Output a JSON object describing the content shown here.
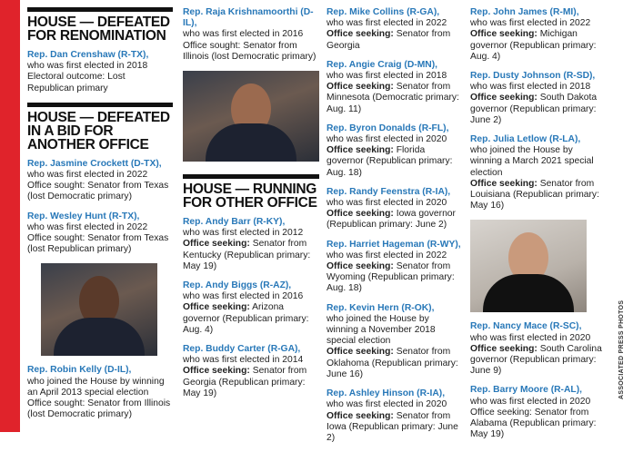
{
  "credit": "ASSOCIATED PRESS PHOTOS",
  "sections": [
    {
      "heading": "HOUSE — DEFEATED FOR RENOMINATION",
      "entries": [
        {
          "name": "Rep. Dan Crenshaw (R-TX),",
          "intro": "who was first elected in 2018",
          "detail": "Electoral outcome: Lost Republican primary"
        }
      ]
    },
    {
      "heading": "HOUSE — DEFEATED IN A BID FOR ANOTHER OFFICE",
      "entries": [
        {
          "name": "Rep. Jasmine Crockett (D-TX),",
          "intro": "who was first elected in 2022",
          "detail": "Office sought: Senator from Texas (lost Democratic primary)"
        },
        {
          "name": "Rep. Wesley Hunt (R-TX),",
          "intro": "who was first elected in 2022",
          "detail": "Office sought: Senator from Texas (lost Republican primary)"
        },
        {
          "name": "Rep. Robin Kelly (D-IL),",
          "intro": "who joined the House by winning an April 2013 special election",
          "detail": "Office sought: Senator from Illinois (lost Democratic primary)"
        },
        {
          "name": "Rep. Raja Krishnamoorthi (D-IL),",
          "intro": "who was first elected in 2016",
          "detail": "Office sought: Senator from Illinois (lost Democratic primary)"
        }
      ]
    },
    {
      "heading": "HOUSE — RUNNING FOR OTHER OFFICE",
      "entries": [
        {
          "name": "Rep. Andy Barr (R-KY),",
          "intro": "who was first elected in 2012",
          "label": "Office seeking:",
          "detail": "Senator from Kentucky (Republican primary: May 19)"
        },
        {
          "name": "Rep. Andy Biggs (R-AZ),",
          "intro": "who was first elected in 2016",
          "label": "Office seeking:",
          "detail": "Arizona governor (Republican primary: Aug. 4)"
        },
        {
          "name": "Rep. Buddy Carter (R-GA),",
          "intro": "who was first elected in 2014",
          "label": "Office seeking:",
          "detail": "Senator from Georgia (Republican primary: May 19)"
        },
        {
          "name": "Rep. Mike Collins (R-GA),",
          "intro": "who was first elected in 2022",
          "label": "Office seeking:",
          "detail": "Senator from Georgia"
        },
        {
          "name": "Rep. Angie Craig (D-MN),",
          "intro": "who was first elected in 2018",
          "label": "Office seeking:",
          "detail": "Senator from Minnesota (Democratic primary: Aug. 11)"
        },
        {
          "name": "Rep. Byron Donalds (R-FL),",
          "intro": "who was first elected in 2020",
          "label": "Office seeking:",
          "detail": "Florida governor (Republican primary: Aug. 18)"
        },
        {
          "name": "Rep. Randy Feenstra (R-IA),",
          "intro": "who was first elected in 2020",
          "label": "Office seeking:",
          "detail": "Iowa governor (Republican primary: June 2)"
        },
        {
          "name": "Rep. Harriet Hageman (R-WY),",
          "intro": "who was first elected in 2022",
          "label": "Office seeking:",
          "detail": "Senator from Wyoming (Republican primary: Aug. 18)"
        },
        {
          "name": "Rep. Kevin Hern (R-OK),",
          "intro": "who joined the House by winning a November 2018 special election",
          "label": "Office seeking:",
          "detail": "Senator from Oklahoma (Republican primary: June 16)"
        },
        {
          "name": "Rep. Ashley Hinson (R-IA),",
          "intro": "who was first elected in 2020",
          "label": "Office seeking:",
          "detail": "Senator from Iowa (Republican primary: June 2)"
        },
        {
          "name": "Rep. John James (R-MI),",
          "intro": "who was first elected in 2022",
          "label": "Office seeking:",
          "detail": "Michigan governor (Republican primary: Aug. 4)"
        },
        {
          "name": "Rep. Dusty Johnson (R-SD),",
          "intro": "who was first elected in 2018",
          "label": "Office seeking:",
          "detail": "South Dakota governor (Republican primary: June 2)"
        },
        {
          "name": "Rep. Julia Letlow (R-LA),",
          "intro": "who joined the House by winning a March 2021 special election",
          "label": "Office seeking:",
          "detail": "Senator from Louisiana (Republican primary: May 16)"
        },
        {
          "name": "Rep. Nancy Mace (R-SC),",
          "intro": "who was first elected in 2020",
          "label": "Office seeking:",
          "detail": "South Carolina governor (Republican primary: June 9)"
        },
        {
          "name": "Rep. Barry Moore (R-AL),",
          "intro": "who was first elected in 2020",
          "detail": "Office seeking: Senator from Alabama (Republican primary: May 19)"
        }
      ]
    }
  ]
}
